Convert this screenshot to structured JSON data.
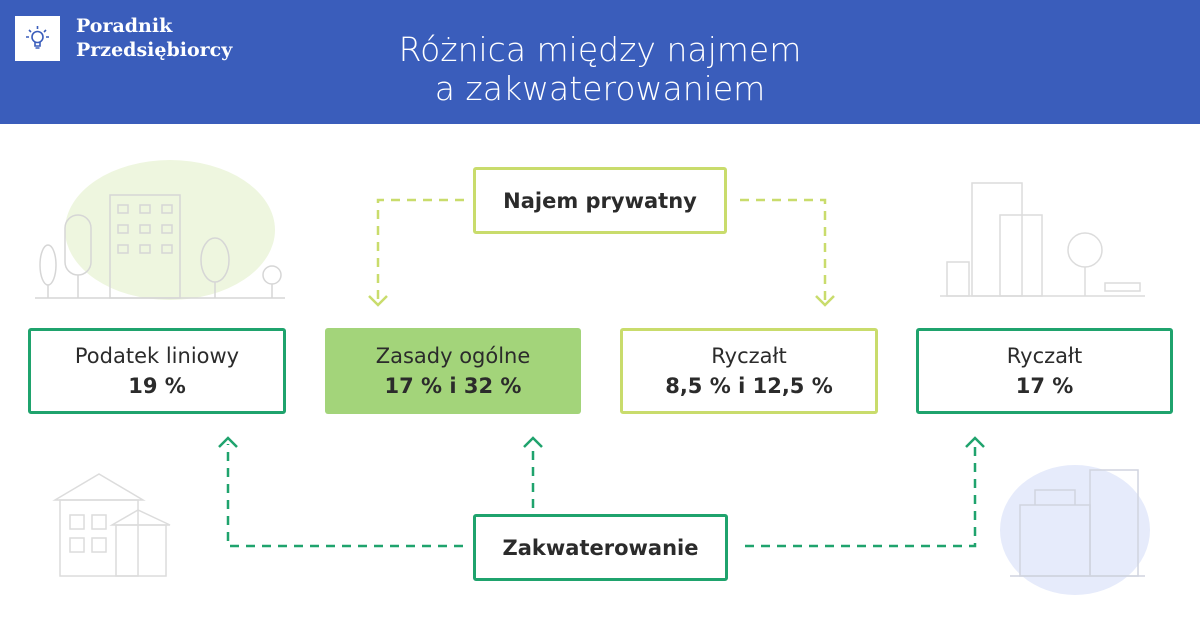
{
  "header": {
    "logo_line1": "Poradnik",
    "logo_line2": "Przedsiębiorcy",
    "logo_icon": "lightbulb-icon",
    "title_line1": "Różnica między najmem",
    "title_line2": "a zakwaterowaniem"
  },
  "colors": {
    "header": "#3a5dbb",
    "lime": "#c9dc6c",
    "green": "#1fa36d",
    "filled": "#a3d47a"
  },
  "diagram": {
    "top_node": "Najem prywatny",
    "bottom_node": "Zakwaterowanie",
    "boxes": [
      {
        "label": "Podatek liniowy",
        "value": "19 %"
      },
      {
        "label": "Zasady ogólne",
        "value": "17 % i 32 %"
      },
      {
        "label": "Ryczałt",
        "value": "8,5 % i 12,5 %"
      },
      {
        "label": "Ryczałt",
        "value": "17 %"
      }
    ]
  }
}
